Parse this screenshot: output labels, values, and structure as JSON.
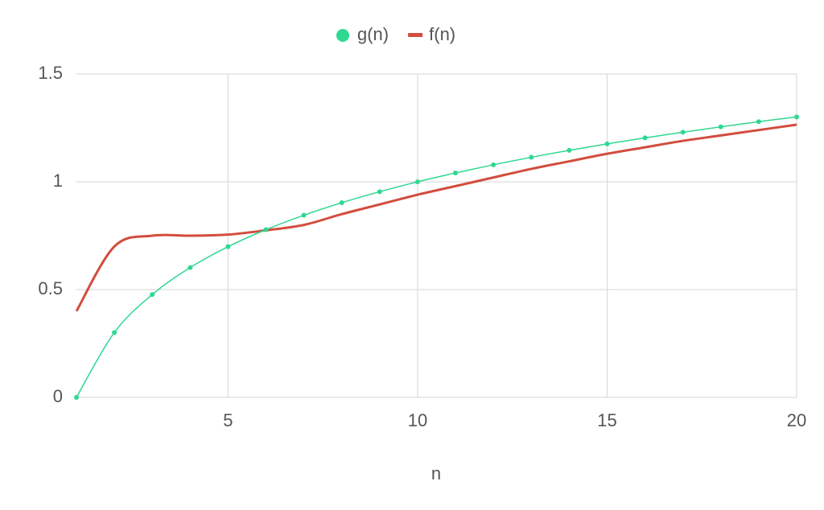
{
  "chart_data": {
    "type": "line",
    "x_label": "n",
    "x": [
      1,
      2,
      3,
      4,
      5,
      6,
      7,
      8,
      9,
      10,
      11,
      12,
      13,
      14,
      15,
      16,
      17,
      18,
      19,
      20
    ],
    "series": [
      {
        "name": "g(n)",
        "color": "#2fd890",
        "markers": true,
        "values": [
          0,
          0.301,
          0.477,
          0.602,
          0.699,
          0.778,
          0.845,
          0.903,
          0.954,
          1,
          1.041,
          1.079,
          1.114,
          1.146,
          1.176,
          1.204,
          1.23,
          1.255,
          1.279,
          1.301
        ]
      },
      {
        "name": "f(n)",
        "color": "#d24d3e",
        "markers": false,
        "values": [
          0.4,
          0.7,
          0.75,
          0.75,
          0.755,
          0.775,
          0.8,
          0.85,
          0.895,
          0.94,
          0.98,
          1.02,
          1.06,
          1.095,
          1.13,
          1.16,
          1.19,
          1.215,
          1.24,
          1.265
        ]
      }
    ],
    "xlim": [
      1,
      20
    ],
    "xticks": [
      5,
      10,
      15,
      20
    ],
    "ylim": [
      0,
      1.5
    ],
    "yticks": [
      0,
      0.5,
      1,
      1.5
    ],
    "grid": true,
    "legend": "top"
  }
}
